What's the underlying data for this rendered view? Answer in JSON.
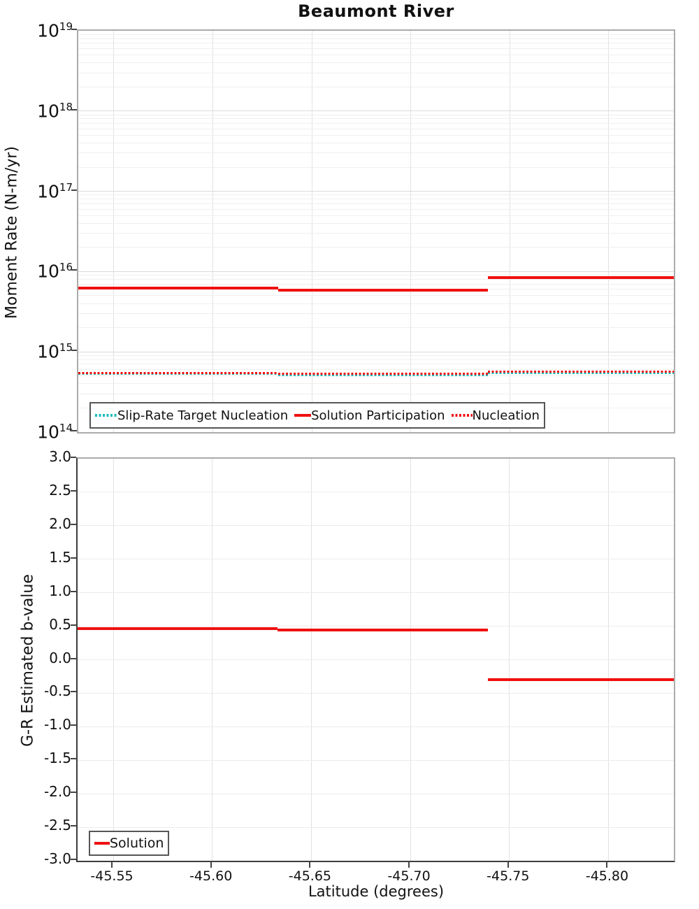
{
  "title": "Beaumont River",
  "panels": {
    "top": {
      "ylabel": "Moment Rate (N-m/yr)"
    },
    "bottom": {
      "ylabel": "G-R Estimated b-value",
      "xlabel": "Latitude (degrees)"
    }
  },
  "colors": {
    "red": "#f01010",
    "cyan": "#1ebcbc",
    "grid_vertical": "#e2e2e2",
    "grid_minor": "#efefef",
    "grid_major": "#dadada",
    "panel_border": "#ababab",
    "axis_dark": "#3c3c3c",
    "tick": "#444444"
  },
  "chart_data": [
    {
      "type": "line",
      "title": "Beaumont River",
      "xlabel": "",
      "ylabel": "Moment Rate (N-m/yr)",
      "yscale": "log",
      "ylim": [
        100000000000000.0,
        1e+19
      ],
      "xlim": [
        -45.532,
        -45.833
      ],
      "x_ticks": [
        -45.55,
        -45.6,
        -45.65,
        -45.7,
        -45.75,
        -45.8
      ],
      "x_tick_labels": [
        "-45.55",
        "-45.60",
        "-45.65",
        "-45.70",
        "-45.75",
        "-45.80"
      ],
      "y_tick_exponents": [
        19,
        18,
        17,
        16,
        15,
        14
      ],
      "grid": true,
      "legend_position": "bottom-inside",
      "series": [
        {
          "name": "Slip-Rate Target Nucleation",
          "color": "#1ebcbc",
          "line": "dotted",
          "x": [
            -45.532,
            -45.633,
            -45.633,
            -45.739,
            -45.739,
            -45.833
          ],
          "y": [
            530000000000000.0,
            530000000000000.0,
            515000000000000.0,
            515000000000000.0,
            550000000000000.0,
            550000000000000.0
          ]
        },
        {
          "name": "Solution Participation",
          "color": "#f01010",
          "line": "solid",
          "x": [
            -45.532,
            -45.633,
            -45.633,
            -45.739,
            -45.739,
            -45.833
          ],
          "y": [
            6200000000000000.0,
            6200000000000000.0,
            5900000000000000.0,
            5900000000000000.0,
            8500000000000000.0,
            8500000000000000.0
          ]
        },
        {
          "name": "Nucleation",
          "color": "#f01010",
          "line": "dotted",
          "x": [
            -45.532,
            -45.633,
            -45.633,
            -45.739,
            -45.739,
            -45.833
          ],
          "y": [
            545000000000000.0,
            545000000000000.0,
            530000000000000.0,
            530000000000000.0,
            565000000000000.0,
            565000000000000.0
          ]
        }
      ]
    },
    {
      "type": "line",
      "title": "",
      "xlabel": "Latitude (degrees)",
      "ylabel": "G-R Estimated b-value",
      "yscale": "linear",
      "ylim": [
        -3.0,
        3.0
      ],
      "xlim": [
        -45.532,
        -45.833
      ],
      "x_ticks": [
        -45.55,
        -45.6,
        -45.65,
        -45.7,
        -45.75,
        -45.8
      ],
      "x_tick_labels": [
        "-45.55",
        "-45.60",
        "-45.65",
        "-45.70",
        "-45.75",
        "-45.80"
      ],
      "y_ticks": [
        3.0,
        2.5,
        2.0,
        1.5,
        1.0,
        0.5,
        0.0,
        -0.5,
        -1.0,
        -1.5,
        -2.0,
        -2.5,
        -3.0
      ],
      "y_tick_labels": [
        "3.0",
        "2.5",
        "2.0",
        "1.5",
        "1.0",
        "0.5",
        "0.0",
        "-0.5",
        "-1.0",
        "-1.5",
        "-2.0",
        "-2.5",
        "-3.0"
      ],
      "grid": true,
      "legend_position": "bottom-left-inside",
      "series": [
        {
          "name": "Solution",
          "color": "#f01010",
          "line": "solid",
          "x": [
            -45.532,
            -45.633,
            -45.633,
            -45.739,
            -45.739,
            -45.833
          ],
          "y": [
            0.46,
            0.46,
            0.44,
            0.44,
            -0.3,
            -0.3
          ]
        }
      ]
    }
  ]
}
